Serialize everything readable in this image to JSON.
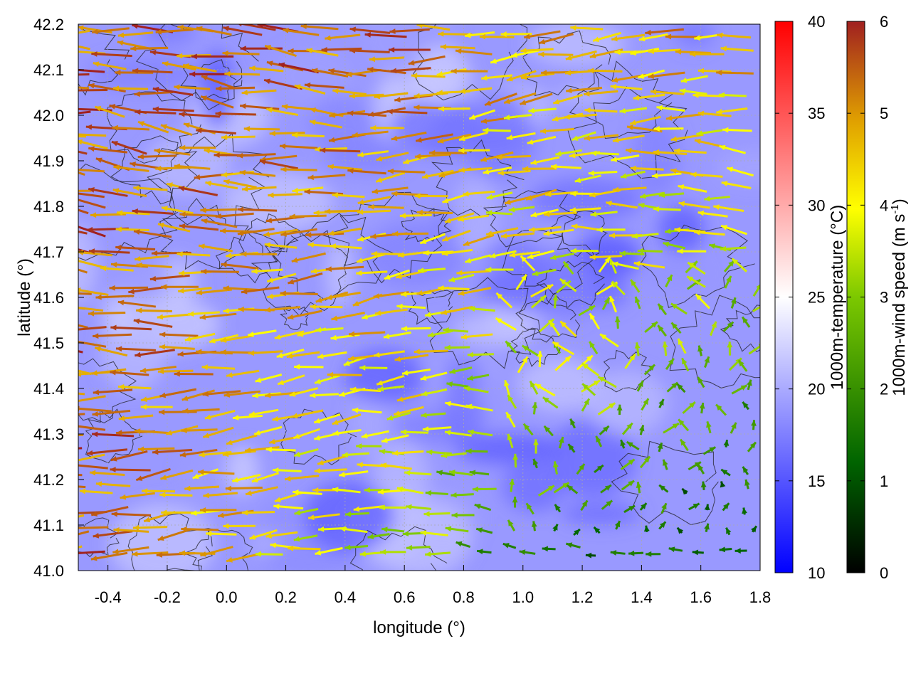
{
  "chart_data": {
    "type": "heatmap",
    "title": "",
    "xlabel": "longitude (°)",
    "ylabel": "latitude (°)",
    "xlim": [
      -0.5,
      1.8
    ],
    "ylim": [
      41.0,
      42.2
    ],
    "x_ticks": [
      "-0.4",
      "-0.2",
      "0.0",
      "0.2",
      "0.4",
      "0.6",
      "0.8",
      "1.0",
      "1.2",
      "1.4",
      "1.6",
      "1.8"
    ],
    "y_ticks": [
      "41.0",
      "41.1",
      "41.2",
      "41.3",
      "41.4",
      "41.5",
      "41.6",
      "41.7",
      "41.8",
      "41.9",
      "42.0",
      "42.1",
      "42.2"
    ],
    "grid": true,
    "overlays": [
      "wind vectors",
      "terrain contours"
    ],
    "colorbars": [
      {
        "label": "1000m-temperature (°C)",
        "range": [
          10,
          40
        ],
        "ticks": [
          "10",
          "15",
          "20",
          "25",
          "30",
          "35",
          "40"
        ],
        "colors": [
          "#0000ff",
          "#ffffff",
          "#ff0000"
        ]
      },
      {
        "label_main": "1000m-wind speed (m s",
        "label_sup": "-1",
        "label_end": ")",
        "range": [
          0,
          6
        ],
        "ticks": [
          "0",
          "1",
          "2",
          "3",
          "4",
          "5",
          "6"
        ],
        "colors": [
          "#000000",
          "#006400",
          "#7cc800",
          "#ffff00",
          "#e0a000",
          "#c06020",
          "#a02020"
        ]
      }
    ],
    "field_mean_temperature": 19
  }
}
